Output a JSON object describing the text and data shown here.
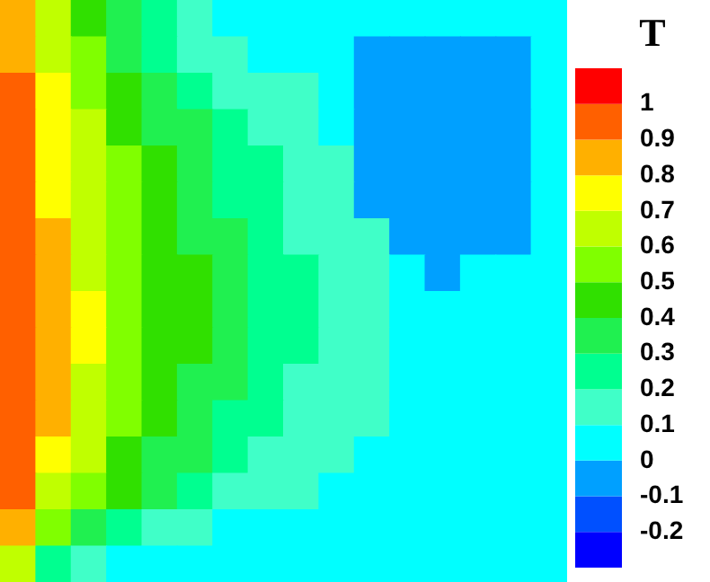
{
  "chart_data": {
    "type": "heatmap",
    "clabel": "T",
    "tick_labels": false,
    "categories": [
      null,
      null,
      null,
      null,
      null,
      null,
      null,
      null,
      null,
      null,
      null,
      null,
      null,
      null,
      null,
      null
    ],
    "y_categories": [
      null,
      null,
      null,
      null,
      null,
      null,
      null,
      null,
      null,
      null,
      null,
      null,
      null,
      null,
      null,
      null
    ],
    "clim": [
      -0.3,
      1.1
    ],
    "cticks": [
      1,
      0.9,
      0.8,
      0.7,
      0.6,
      0.5,
      0.4,
      0.3,
      0.2,
      0.1,
      0,
      -0.1,
      -0.2
    ],
    "colors": [
      "#0000ff",
      "#0050ff",
      "#00a0ff",
      "#00ffff",
      "#40ffc8",
      "#00ff90",
      "#20f050",
      "#30e000",
      "#80ff00",
      "#c0ff00",
      "#ffff00",
      "#ffb000",
      "#ff6000",
      "#ff0000"
    ],
    "cells": [
      [
        0.85,
        0.65,
        0.45,
        0.35,
        0.25,
        0.15,
        0.05,
        0.05,
        0.05,
        0.05,
        0.05,
        0.05,
        0.05,
        0.05,
        0.05,
        0.05
      ],
      [
        0.85,
        0.65,
        0.55,
        0.35,
        0.25,
        0.15,
        0.15,
        0.05,
        0.05,
        0.05,
        -0.05,
        -0.05,
        -0.05,
        -0.05,
        -0.05,
        0.05
      ],
      [
        0.95,
        0.75,
        0.55,
        0.45,
        0.35,
        0.25,
        0.15,
        0.15,
        0.15,
        0.05,
        -0.05,
        -0.05,
        -0.05,
        -0.05,
        -0.05,
        0.05
      ],
      [
        0.95,
        0.75,
        0.65,
        0.45,
        0.35,
        0.35,
        0.25,
        0.15,
        0.15,
        0.05,
        -0.05,
        -0.05,
        -0.05,
        -0.05,
        -0.05,
        0.05
      ],
      [
        0.95,
        0.75,
        0.65,
        0.55,
        0.45,
        0.35,
        0.25,
        0.25,
        0.15,
        0.15,
        -0.05,
        -0.05,
        -0.05,
        -0.05,
        -0.05,
        0.05
      ],
      [
        0.95,
        0.75,
        0.65,
        0.55,
        0.45,
        0.35,
        0.25,
        0.25,
        0.15,
        0.15,
        -0.05,
        -0.05,
        -0.05,
        -0.05,
        -0.05,
        0.05
      ],
      [
        0.95,
        0.85,
        0.65,
        0.55,
        0.45,
        0.35,
        0.35,
        0.25,
        0.15,
        0.15,
        0.15,
        -0.05,
        -0.05,
        -0.05,
        -0.05,
        0.05
      ],
      [
        0.95,
        0.85,
        0.65,
        0.55,
        0.45,
        0.45,
        0.35,
        0.25,
        0.25,
        0.15,
        0.15,
        0.05,
        -0.05,
        0.05,
        0.05,
        0.05
      ],
      [
        0.95,
        0.85,
        0.75,
        0.55,
        0.45,
        0.45,
        0.35,
        0.25,
        0.25,
        0.15,
        0.15,
        0.05,
        0.05,
        0.05,
        0.05,
        0.05
      ],
      [
        0.95,
        0.85,
        0.75,
        0.55,
        0.45,
        0.45,
        0.35,
        0.25,
        0.25,
        0.15,
        0.15,
        0.05,
        0.05,
        0.05,
        0.05,
        0.05
      ],
      [
        0.95,
        0.85,
        0.65,
        0.55,
        0.45,
        0.35,
        0.35,
        0.25,
        0.15,
        0.15,
        0.15,
        0.05,
        0.05,
        0.05,
        0.05,
        0.05
      ],
      [
        0.95,
        0.85,
        0.65,
        0.55,
        0.45,
        0.35,
        0.25,
        0.25,
        0.15,
        0.15,
        0.15,
        0.05,
        0.05,
        0.05,
        0.05,
        0.05
      ],
      [
        0.95,
        0.75,
        0.65,
        0.45,
        0.35,
        0.35,
        0.25,
        0.15,
        0.15,
        0.15,
        0.05,
        0.05,
        0.05,
        0.05,
        0.05,
        0.05
      ],
      [
        0.95,
        0.65,
        0.55,
        0.45,
        0.35,
        0.25,
        0.15,
        0.15,
        0.15,
        0.05,
        0.05,
        0.05,
        0.05,
        0.05,
        0.05,
        0.05
      ],
      [
        0.85,
        0.55,
        0.35,
        0.25,
        0.15,
        0.15,
        0.05,
        0.05,
        0.05,
        0.05,
        0.05,
        0.05,
        0.05,
        0.05,
        0.05,
        0.05
      ],
      [
        0.65,
        0.25,
        0.15,
        0.05,
        0.05,
        0.05,
        0.05,
        0.05,
        0.05,
        0.05,
        0.05,
        0.05,
        0.05,
        0.05,
        0.05,
        0.05
      ]
    ]
  }
}
